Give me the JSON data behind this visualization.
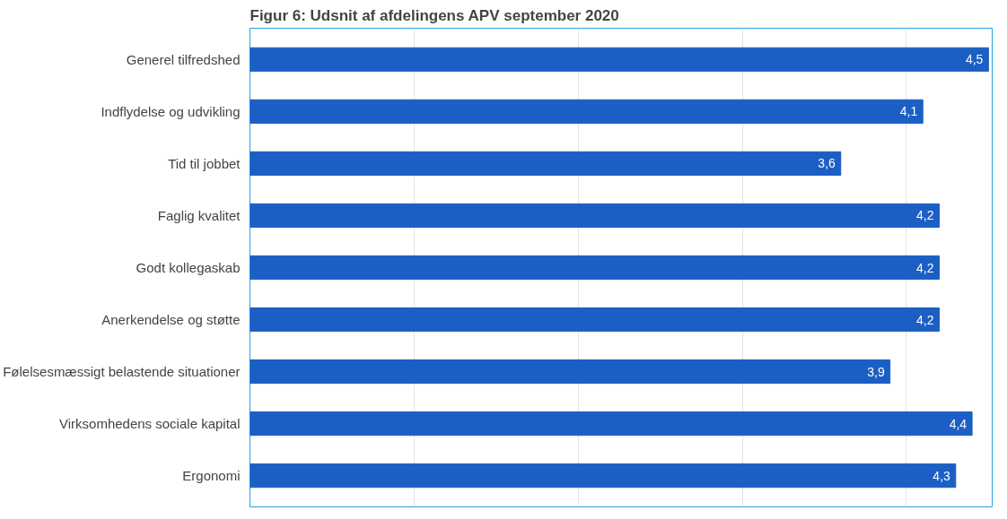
{
  "chart_data": {
    "type": "bar",
    "orientation": "horizontal",
    "title": "Figur 6: Udsnit af afdelingens APV september 2020",
    "categories": [
      "Generel tilfredshed",
      "Indflydelse og udvikling",
      "Tid til jobbet",
      "Faglig kvalitet",
      "Godt kollegaskab",
      "Anerkendelse og støtte",
      "Følelsesmæssigt belastende situationer",
      "Virksomhedens sociale kapital",
      "Ergonomi"
    ],
    "values": [
      4.5,
      4.1,
      3.6,
      4.2,
      4.2,
      4.2,
      3.9,
      4.4,
      4.3
    ],
    "value_labels": [
      "4,5",
      "4,1",
      "3,6",
      "4,2",
      "4,2",
      "4,2",
      "3,9",
      "4,4",
      "4,3"
    ],
    "color": "#1c5fc4",
    "grid": "x",
    "tick_labels": "y"
  }
}
